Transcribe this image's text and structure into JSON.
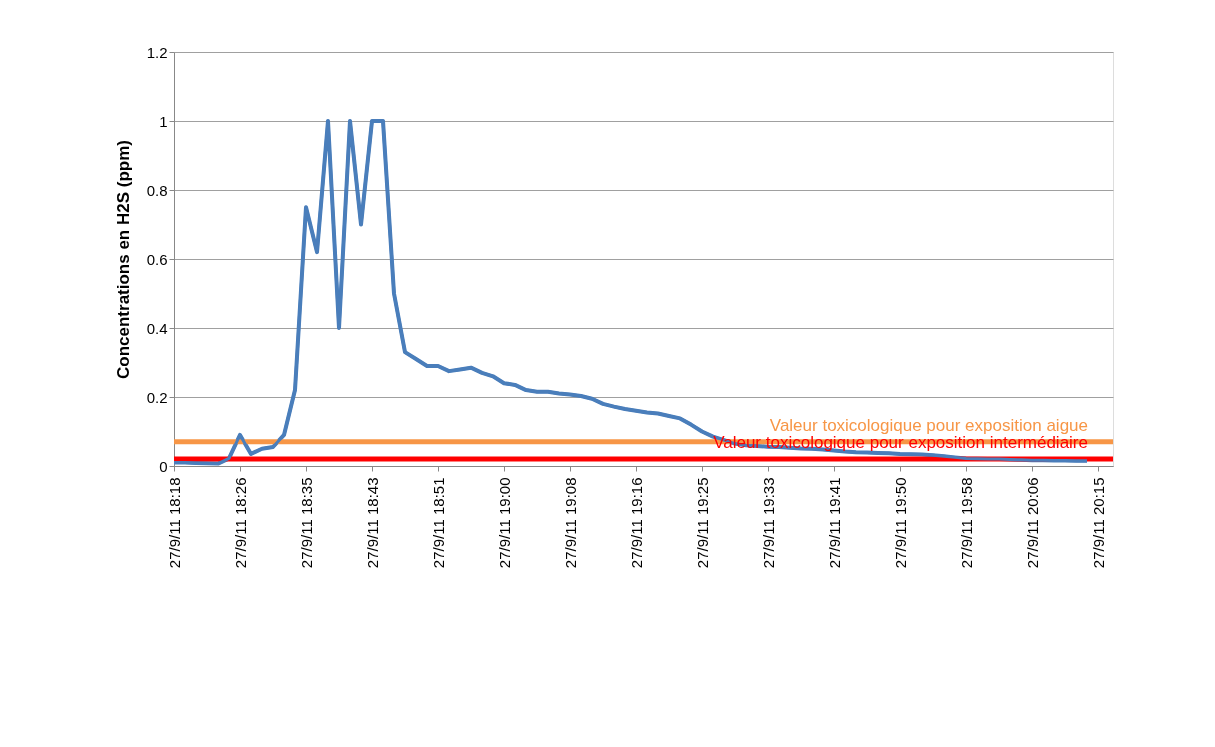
{
  "chart_data": {
    "type": "line",
    "ylabel": "Concentrations en H2S (ppm)",
    "categories": [
      "27/9/11 18:18",
      null,
      null,
      null,
      null,
      null,
      "27/9/11 18:26",
      null,
      null,
      null,
      null,
      null,
      "27/9/11 18:35",
      null,
      null,
      null,
      null,
      null,
      "27/9/11 18:43",
      null,
      null,
      null,
      null,
      null,
      "27/9/11 18:51",
      null,
      null,
      null,
      null,
      null,
      "27/9/11 19:00",
      null,
      null,
      null,
      null,
      null,
      "27/9/11 19:08",
      null,
      null,
      null,
      null,
      null,
      "27/9/11 19:16",
      null,
      null,
      null,
      null,
      null,
      "27/9/11 19:25",
      null,
      null,
      null,
      null,
      null,
      "27/9/11 19:33",
      null,
      null,
      null,
      null,
      null,
      "27/9/11 19:41",
      null,
      null,
      null,
      null,
      null,
      "27/9/11 19:50",
      null,
      null,
      null,
      null,
      null,
      "27/9/11 19:58",
      null,
      null,
      null,
      null,
      null,
      "27/9/11 20:06",
      null,
      null,
      null,
      null,
      null,
      "27/9/11 20:15"
    ],
    "series": [
      {
        "color": "#4a7ebb",
        "values": [
          0.01,
          0.01,
          0.009,
          0.008,
          0.007,
          0.022,
          0.09,
          0.035,
          0.05,
          0.055,
          0.09,
          0.22,
          0.75,
          0.62,
          1.0,
          0.4,
          1.0,
          0.7,
          1.0,
          1.0,
          0.5,
          0.33,
          0.31,
          0.29,
          0.29,
          0.275,
          0.28,
          0.285,
          0.27,
          0.26,
          0.24,
          0.235,
          0.22,
          0.215,
          0.215,
          0.21,
          0.207,
          0.203,
          0.195,
          0.18,
          0.172,
          0.165,
          0.16,
          0.155,
          0.152,
          0.145,
          0.138,
          0.12,
          0.1,
          0.085,
          0.075,
          0.065,
          0.06,
          0.058,
          0.056,
          0.055,
          0.053,
          0.051,
          0.05,
          0.048,
          0.045,
          0.042,
          0.04,
          0.039,
          0.038,
          0.037,
          0.035,
          0.034,
          0.033,
          0.031,
          0.028,
          0.025,
          0.022,
          0.021,
          0.02,
          0.02,
          0.019,
          0.018,
          0.017,
          0.017,
          0.016,
          0.016,
          0.015,
          0.015,
          null
        ]
      }
    ],
    "ylim": [
      0,
      1.2
    ],
    "yticks": [
      0,
      0.2,
      0.4,
      0.6,
      0.8,
      1,
      1.2
    ],
    "grid": "y",
    "marker": "none",
    "line_style": "solid",
    "ref_lines": [
      {
        "axis": "y",
        "value": 0.07,
        "label": "Valeur toxicologique pour exposition aigue",
        "color": "#f79646"
      },
      {
        "axis": "y",
        "value": 0.02,
        "label": "Valeur toxicologique pour exposition intermédiaire",
        "color": "#ff0000"
      }
    ]
  }
}
